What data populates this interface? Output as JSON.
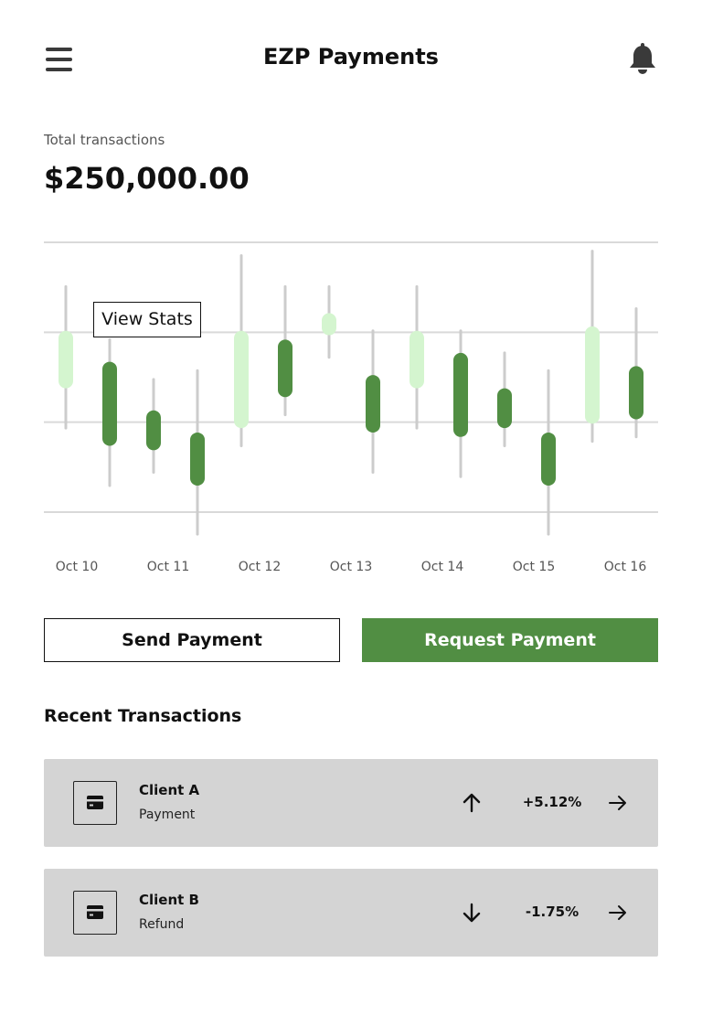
{
  "header": {
    "title": "EZP Payments",
    "menu_icon": "hamburger-menu-icon",
    "notification_icon": "bell-icon"
  },
  "summary": {
    "label": "Total transactions",
    "amount": "$250,000.00"
  },
  "chart_data": {
    "type": "candlestick",
    "categories": [
      "Oct 10",
      "Oct 11",
      "Oct 12",
      "Oct 13",
      "Oct 14",
      "Oct 15",
      "Oct 16"
    ],
    "grid": true,
    "ylim": [
      0,
      3.05
    ],
    "colors": {
      "up": "#d4f5cf",
      "down": "#518e43",
      "wick": "#cccccc",
      "grid": "#d9d9d9"
    },
    "candles": [
      {
        "x": 0.0,
        "open": 1.4,
        "close": 2.05,
        "high": 2.55,
        "low": 0.95,
        "trend": "up"
      },
      {
        "x": 0.48,
        "open": 1.7,
        "close": 0.75,
        "high": 1.95,
        "low": 0.3,
        "trend": "down"
      },
      {
        "x": 0.96,
        "open": 1.15,
        "close": 0.7,
        "high": 1.5,
        "low": 0.45,
        "trend": "down"
      },
      {
        "x": 1.44,
        "open": 0.9,
        "close": 0.3,
        "high": 1.6,
        "low": -0.25,
        "trend": "down"
      },
      {
        "x": 1.92,
        "open": 0.95,
        "close": 2.05,
        "high": 2.9,
        "low": 0.75,
        "trend": "up"
      },
      {
        "x": 2.4,
        "open": 1.95,
        "close": 1.3,
        "high": 2.55,
        "low": 1.1,
        "trend": "down"
      },
      {
        "x": 2.88,
        "open": 2.0,
        "close": 2.25,
        "high": 2.55,
        "low": 1.75,
        "trend": "up"
      },
      {
        "x": 3.36,
        "open": 1.55,
        "close": 0.9,
        "high": 2.05,
        "low": 0.45,
        "trend": "down"
      },
      {
        "x": 3.84,
        "open": 1.4,
        "close": 2.05,
        "high": 2.55,
        "low": 0.95,
        "trend": "up"
      },
      {
        "x": 4.32,
        "open": 1.8,
        "close": 0.85,
        "high": 2.05,
        "low": 0.4,
        "trend": "down"
      },
      {
        "x": 4.8,
        "open": 1.4,
        "close": 0.95,
        "high": 1.8,
        "low": 0.75,
        "trend": "down"
      },
      {
        "x": 5.28,
        "open": 0.9,
        "close": 0.3,
        "high": 1.6,
        "low": -0.25,
        "trend": "down"
      },
      {
        "x": 5.76,
        "open": 1.0,
        "close": 2.1,
        "high": 2.95,
        "low": 0.8,
        "trend": "up"
      },
      {
        "x": 6.24,
        "open": 1.65,
        "close": 1.05,
        "high": 2.3,
        "low": 0.85,
        "trend": "down"
      }
    ],
    "tooltip": "View Stats"
  },
  "actions": {
    "send_label": "Send Payment",
    "request_label": "Request Payment",
    "request_color": "#518e43"
  },
  "recent": {
    "title": "Recent Transactions",
    "items": [
      {
        "name": "Client A",
        "type": "Payment",
        "change": "+5.12%",
        "trend_icon": "arrow-up-icon",
        "row_icon": "credit-card-icon",
        "go_icon": "arrow-right-icon"
      },
      {
        "name": "Client B",
        "type": "Refund",
        "change": "-1.75%",
        "trend_icon": "arrow-down-icon",
        "row_icon": "credit-card-icon",
        "go_icon": "arrow-right-icon"
      }
    ]
  }
}
